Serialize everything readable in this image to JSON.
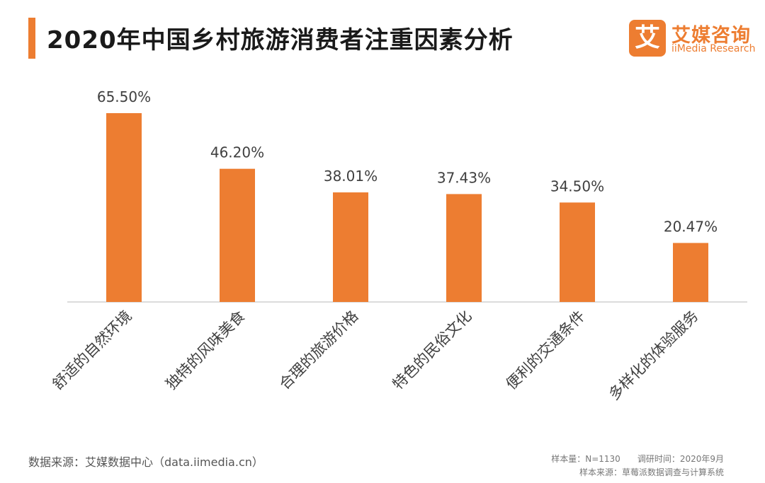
{
  "header": {
    "title": "2020年中国乡村旅游消费者注重因素分析",
    "logo_mark": "艾",
    "logo_cn": "艾媒咨询",
    "logo_en": "iiMedia Research"
  },
  "footer": {
    "source": "数据来源：艾媒数据中心（data.iimedia.cn）",
    "sample": "样本量：N=1130　　调研时间：2020年9月",
    "sample_source": "样本来源：草莓派数据调查与计算系统"
  },
  "colors": {
    "bar": "#ed7d31",
    "axis": "#d0d0d0",
    "label": "#404040"
  },
  "chart_data": {
    "type": "bar",
    "title": "2020年中国乡村旅游消费者注重因素分析",
    "categories": [
      "舒适的自然环境",
      "独特的风味美食",
      "合理的旅游价格",
      "特色的民俗文化",
      "便利的交通条件",
      "多样化的体验服务"
    ],
    "values": [
      65.5,
      46.2,
      38.01,
      37.43,
      34.5,
      20.47
    ],
    "data_labels": [
      "65.50%",
      "46.20%",
      "38.01%",
      "37.43%",
      "34.50%",
      "20.47%"
    ],
    "unit": "%",
    "ylim": [
      0,
      65.5
    ],
    "grid": false,
    "legend": "none"
  }
}
